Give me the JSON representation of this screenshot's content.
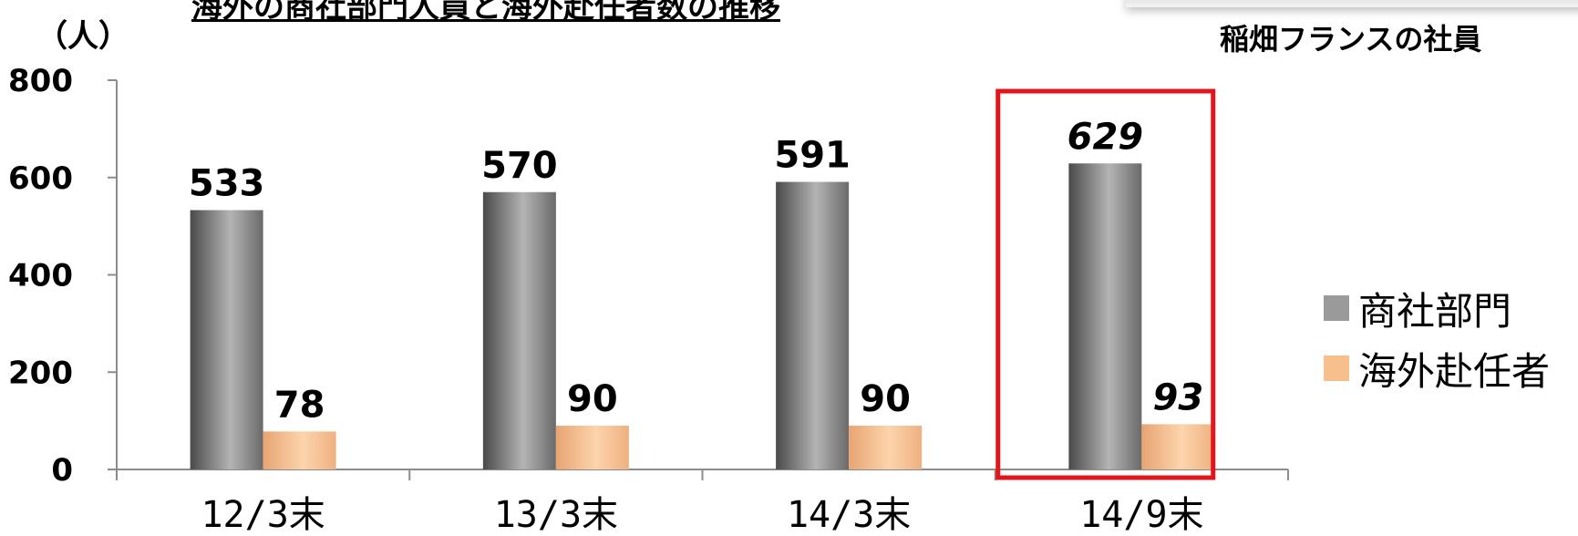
{
  "header": {
    "title": "海外の商社部門人員と海外赴任者数の推移",
    "unit": "（人）",
    "caption": "稲畑フランスの社員"
  },
  "chart_data": {
    "type": "bar",
    "categories": [
      "12/3末",
      "13/3末",
      "14/3末",
      "14/9末"
    ],
    "series": [
      {
        "name": "商社部門",
        "values": [
          533,
          570,
          591,
          629
        ],
        "color": "#9a9a9a"
      },
      {
        "name": "海外赴任者",
        "values": [
          78,
          90,
          90,
          93
        ],
        "color": "#f7bf8c"
      }
    ],
    "ylim": [
      0,
      800
    ],
    "yticks": [
      "0",
      "200",
      "400",
      "600",
      "800"
    ],
    "highlight_category": "14/9末",
    "highlight_color": "#e3151a",
    "legend_position": "right",
    "grid": false
  }
}
